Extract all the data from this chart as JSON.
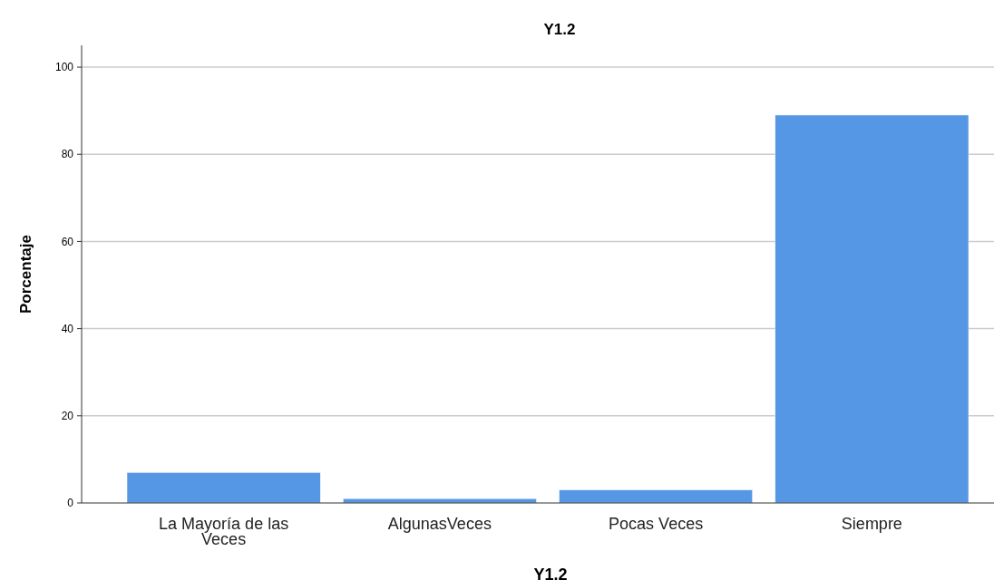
{
  "chart_data": {
    "type": "bar",
    "title": "Y1.2",
    "xlabel": "Y1.2",
    "ylabel": "Porcentaje",
    "categories": [
      "La Mayoría de las Veces",
      "AlgunasVeces",
      "Pocas Veces",
      "Siempre"
    ],
    "values": [
      7,
      1,
      3,
      89
    ],
    "color": "#5597e5",
    "ylim": [
      0,
      105
    ],
    "yticks": [
      0,
      20,
      40,
      60,
      80,
      100
    ],
    "grid": "y"
  }
}
